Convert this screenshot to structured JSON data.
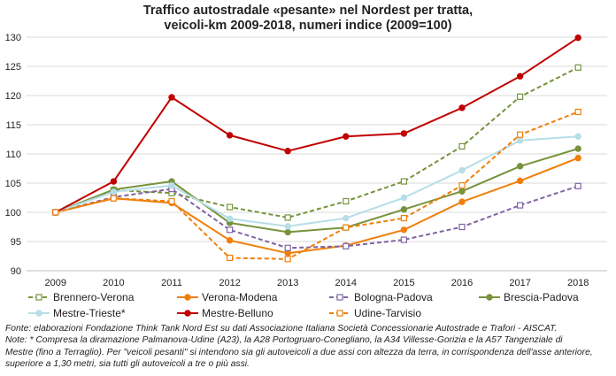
{
  "chart_data": {
    "type": "line",
    "title": [
      "Traffico autostradale «pesante» nel Nordest per tratta,",
      "veicoli-km 2009-2018, numeri indice (2009=100)"
    ],
    "xlabel": "",
    "ylabel": "",
    "x": [
      "2009",
      "2010",
      "2011",
      "2012",
      "2013",
      "2014",
      "2015",
      "2016",
      "2017",
      "2018"
    ],
    "ylim": [
      90,
      130
    ],
    "yticks": [
      90,
      95,
      100,
      105,
      110,
      115,
      120,
      125,
      130
    ],
    "grid": "horizontal",
    "legend_position": "bottom",
    "series": [
      {
        "name": "Brennero-Verona",
        "color": "#77933c",
        "style": "dashed",
        "marker": "open-square",
        "values": [
          100,
          103.8,
          103.3,
          100.9,
          99.1,
          101.9,
          105.3,
          111.3,
          119.8,
          124.8
        ]
      },
      {
        "name": "Verona-Modena",
        "color": "#f07f09",
        "style": "solid",
        "marker": "filled-circle",
        "values": [
          100,
          102.4,
          101.6,
          95.2,
          93.0,
          94.3,
          97.0,
          101.8,
          105.4,
          109.3
        ]
      },
      {
        "name": "Bologna-Padova",
        "color": "#8064a2",
        "style": "dashed",
        "marker": "open-square",
        "values": [
          100,
          102.6,
          104.0,
          97.0,
          93.9,
          94.2,
          95.3,
          97.5,
          101.2,
          104.5
        ]
      },
      {
        "name": "Brescia-Padova",
        "color": "#77933c",
        "style": "solid",
        "marker": "filled-circle",
        "values": [
          100,
          103.9,
          105.3,
          98.2,
          96.6,
          97.4,
          100.5,
          103.6,
          107.9,
          110.9
        ]
      },
      {
        "name": "Mestre-Trieste*",
        "color": "#b7dee8",
        "style": "solid",
        "marker": "filled-circle",
        "values": [
          100,
          103.5,
          104.6,
          98.9,
          97.6,
          99.0,
          102.5,
          107.2,
          112.3,
          113.0
        ]
      },
      {
        "name": "Mestre-Belluno",
        "color": "#c00000",
        "style": "solid",
        "marker": "filled-circle",
        "values": [
          100,
          105.3,
          119.7,
          113.2,
          110.5,
          113.0,
          113.5,
          117.9,
          123.3,
          129.9
        ]
      },
      {
        "name": "Udine-Tarvisio",
        "color": "#f07f09",
        "style": "dashed",
        "marker": "open-square",
        "values": [
          100,
          102.4,
          101.9,
          92.2,
          92.0,
          97.4,
          99.0,
          104.6,
          113.3,
          117.2
        ]
      }
    ]
  },
  "source": [
    "Fonte: elaborazioni Fondazione Think Tank Nord Est su dati Associazione Italiana Società Concessionarie Autostrade e Trafori - AISCAT.",
    "Note: * Compresa la diramazione Palmanova-Udine (A23), la A28 Portogruaro-Conegliano, la A34 Villesse-Gorizia e la A57 Tangenziale di",
    "Mestre (fino a Terraglio). Per \"veicoli pesanti\" si intendono sia gli autoveicoli a due assi con altezza da terra, in corrispondenza dell'asse anteriore,",
    "superiore a 1,30 metri, sia tutti gli autoveicoli a tre o più assi."
  ]
}
